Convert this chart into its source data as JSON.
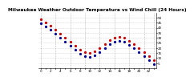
{
  "title": "Milwaukee Weather Outdoor Temperature vs Wind Chill (24 Hours)",
  "title_fontsize": 4.2,
  "background_color": "#ffffff",
  "plot_bg_color": "#ffffff",
  "grid_color": "#999999",
  "temp_color": "#cc0000",
  "windchill_color": "#000099",
  "hours": [
    0,
    1,
    2,
    3,
    4,
    5,
    6,
    7,
    8,
    9,
    10,
    11,
    12,
    13,
    14,
    15,
    16,
    17,
    18,
    19,
    20,
    21,
    22,
    23
  ],
  "temp": [
    48,
    45,
    42,
    38,
    34,
    30,
    26,
    22,
    18,
    16,
    15,
    17,
    20,
    24,
    28,
    30,
    31,
    30,
    27,
    24,
    20,
    16,
    12,
    8
  ],
  "windchill": [
    44,
    41,
    38,
    34,
    30,
    26,
    22,
    18,
    14,
    12,
    11,
    13,
    16,
    20,
    24,
    26,
    27,
    26,
    23,
    20,
    16,
    12,
    8,
    4
  ],
  "ylim": [
    0,
    55
  ],
  "yticks": [
    5,
    10,
    15,
    20,
    25,
    30,
    35,
    40,
    45,
    50
  ],
  "ytick_labels": [
    "5",
    "10",
    "15",
    "20",
    "25",
    "30",
    "35",
    "40",
    "45",
    "50"
  ],
  "marker_size": 1.3,
  "grid_linewidth": 0.4,
  "tick_labelsize": 3.0,
  "vgrid_hours": [
    0,
    3,
    6,
    9,
    12,
    15,
    18,
    21,
    23
  ],
  "xtick_labels": [
    "6",
    "",
    "9",
    "",
    "6",
    "",
    "9",
    "",
    "6",
    "",
    "9",
    "",
    "6",
    "",
    "9",
    "",
    "6",
    "",
    "9",
    "",
    "6",
    "",
    "9",
    ""
  ]
}
